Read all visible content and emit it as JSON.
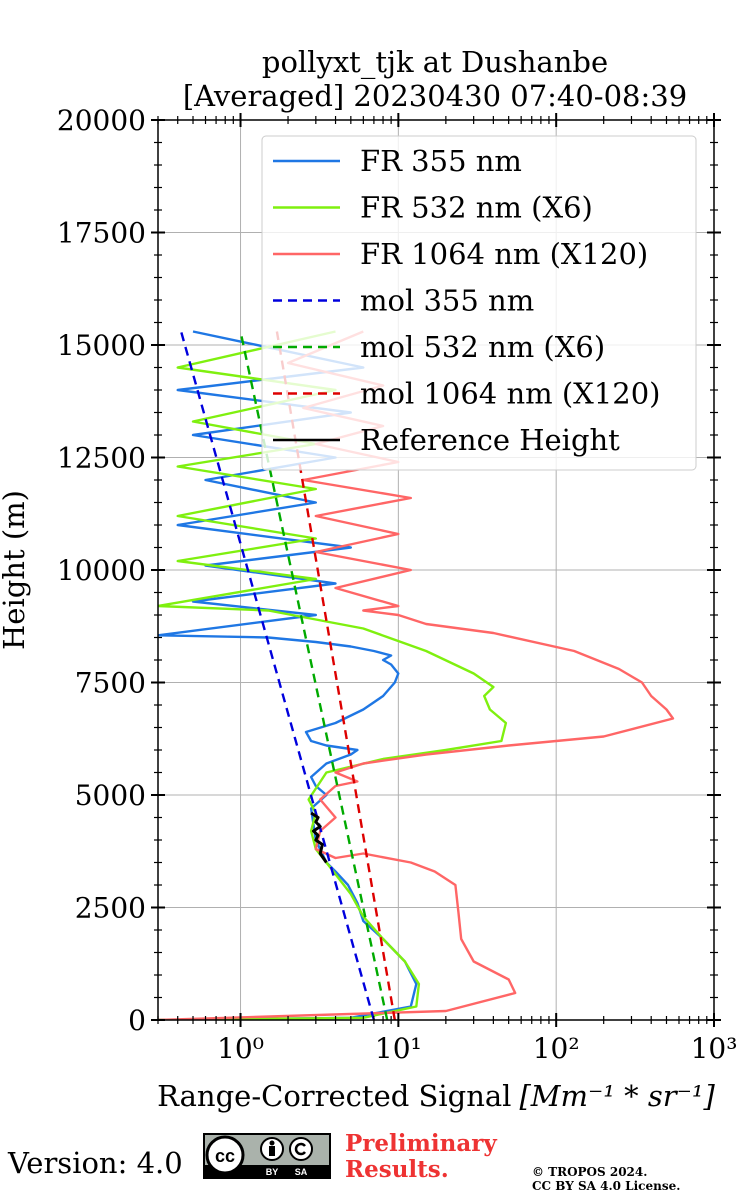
{
  "chart_data": {
    "type": "line",
    "title": "pollyxt_tjk at Dushanbe",
    "subtitle": "[Averaged] 20230430 07:40-08:39",
    "xlabel": "Range-Corrected Signal",
    "xlabel_unit": "[Mm⁻¹ * sr⁻¹]",
    "ylabel": "Height (m)",
    "xscale": "log",
    "xlim": [
      0.3,
      1000
    ],
    "ylim": [
      0,
      20000
    ],
    "xticks": [
      {
        "value": 1,
        "label": "10⁰"
      },
      {
        "value": 10,
        "label": "10¹"
      },
      {
        "value": 100,
        "label": "10²"
      },
      {
        "value": 1000,
        "label": "10³"
      }
    ],
    "yticks": [
      "0",
      "2500",
      "5000",
      "7500",
      "10000",
      "12500",
      "15000",
      "17500",
      "20000"
    ],
    "grid": true,
    "legend_position": "top-right",
    "series": [
      {
        "name": "FR 355 nm",
        "color": "#1f77e4",
        "style": "solid",
        "x": [
          0.3,
          5,
          12,
          13,
          11,
          8,
          6,
          5.5,
          4.8,
          4,
          3.5,
          3,
          2.8,
          3.5,
          3,
          2.8,
          3.5,
          5,
          5.5,
          3.5,
          2.8,
          2.6,
          4,
          6,
          8,
          9.5,
          10,
          9,
          8,
          9,
          7,
          5,
          3,
          1.5,
          0.3,
          3,
          0.5,
          4,
          0.6,
          5,
          0.4,
          3,
          0.6,
          4,
          0.5,
          5,
          0.4,
          6,
          0.5
        ],
        "y": [
          0,
          50,
          300,
          800,
          1300,
          1800,
          2200,
          2600,
          3000,
          3300,
          3500,
          4000,
          4700,
          5000,
          5200,
          5400,
          5700,
          5900,
          6000,
          6100,
          6200,
          6400,
          6600,
          6900,
          7200,
          7500,
          7700,
          7900,
          8000,
          8100,
          8200,
          8300,
          8400,
          8500,
          8550,
          9000,
          9300,
          9700,
          10100,
          10500,
          11000,
          11500,
          12000,
          12500,
          13000,
          13500,
          14000,
          14500,
          15300
        ]
      },
      {
        "name": "FR 532 nm (X6)",
        "color": "#7ff00f",
        "style": "solid",
        "x": [
          0.3,
          6,
          13,
          13.5,
          11,
          8,
          6,
          5,
          3.5,
          3,
          2.8,
          3,
          2.7,
          3.5,
          8,
          20,
          45,
          48,
          38,
          35,
          40,
          30,
          15,
          6,
          1.5,
          0.3,
          3,
          0.4,
          3,
          0.4,
          3,
          0.4,
          3,
          0.5,
          4,
          0.4,
          4
        ],
        "y": [
          0,
          50,
          300,
          800,
          1300,
          1800,
          2300,
          2800,
          3500,
          3800,
          4200,
          4600,
          4900,
          5500,
          5800,
          6000,
          6200,
          6600,
          6900,
          7200,
          7400,
          7700,
          8200,
          8700,
          9100,
          9200,
          9800,
          10200,
          10700,
          11200,
          11800,
          12300,
          12800,
          13300,
          14000,
          14500,
          15300
        ]
      },
      {
        "name": "FR 1064 nm (X120)",
        "color": "#ff6666",
        "style": "solid",
        "x": [
          0.3,
          20,
          55,
          50,
          30,
          25,
          24,
          23,
          17,
          12,
          6,
          4,
          3,
          3.2,
          4,
          3.2,
          4,
          5.5,
          4,
          6,
          15,
          50,
          200,
          550,
          500,
          400,
          350,
          250,
          130,
          40,
          15,
          10,
          6,
          10,
          4,
          12,
          3,
          10,
          3,
          12,
          2.5,
          10,
          3,
          8,
          2.5,
          8,
          2,
          6
        ],
        "y": [
          0,
          200,
          600,
          900,
          1300,
          1800,
          2400,
          3000,
          3300,
          3500,
          3700,
          3600,
          3800,
          4200,
          4500,
          4900,
          5200,
          5300,
          5500,
          5700,
          5900,
          6100,
          6300,
          6700,
          6900,
          7200,
          7500,
          7800,
          8200,
          8600,
          8800,
          9000,
          9100,
          9200,
          9600,
          10000,
          10400,
          10800,
          11200,
          11600,
          12000,
          12400,
          12800,
          13200,
          13600,
          14100,
          14600,
          15300
        ]
      },
      {
        "name": "mol 355 nm",
        "color": "#0000dd",
        "style": "dashed",
        "x": [
          7,
          0.42
        ],
        "y": [
          0,
          15300
        ]
      },
      {
        "name": "mol 532 nm (X6)",
        "color": "#00aa00",
        "style": "dashed",
        "x": [
          8.5,
          1.0
        ],
        "y": [
          0,
          15300
        ]
      },
      {
        "name": "mol 1064 nm (X120)",
        "color": "#dd0000",
        "style": "dashed",
        "x": [
          9.5,
          1.7
        ],
        "y": [
          0,
          15300
        ]
      },
      {
        "name": "Reference Height",
        "color": "#000000",
        "style": "solid",
        "x": [
          3.5,
          3.2,
          3.3,
          3.0,
          3.1,
          2.9,
          3.2,
          3.0,
          3.1,
          2.8
        ],
        "y": [
          3500,
          3700,
          3900,
          4000,
          4100,
          4200,
          4300,
          4400,
          4500,
          4600
        ]
      }
    ]
  },
  "footer": {
    "version": "Version: 4.0",
    "cc_label": "cc",
    "cc_by": "BY",
    "cc_sa": "SA",
    "preliminary_line1": "Preliminary",
    "preliminary_line2": "Results.",
    "copyright_line1": "© TROPOS 2024.",
    "copyright_line2": "CC BY SA 4.0 License."
  }
}
